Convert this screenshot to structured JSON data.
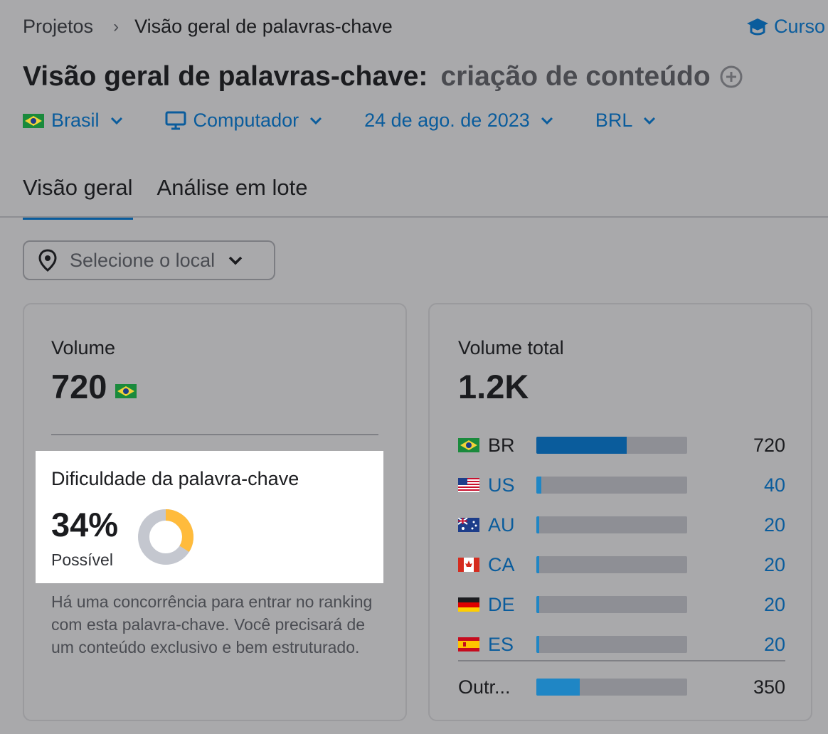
{
  "breadcrumb": {
    "parent": "Projetos",
    "current": "Visão geral de palavras-chave"
  },
  "courses_link": "Curso",
  "title": {
    "prefix": "Visão geral de palavras-chave:",
    "keyword": "criação de conteúdo"
  },
  "filters": {
    "country": "Brasil",
    "device": "Computador",
    "date": "24 de ago. de 2023",
    "currency": "BRL"
  },
  "tabs": [
    "Visão geral",
    "Análise em lote"
  ],
  "location_placeholder": "Selecione o local",
  "volume": {
    "label": "Volume",
    "value": "720"
  },
  "keyword_difficulty": {
    "label": "Dificuldade da palavra-chave",
    "percent_text": "34%",
    "percent": 34,
    "level": "Possível",
    "description": "Há uma concorrência para entrar no ranking com esta palavra-chave. Você precisará de um conteúdo exclusivo e bem estruturado."
  },
  "total_volume": {
    "label": "Volume total",
    "value": "1.2K",
    "countries": [
      {
        "code": "BR",
        "value": "720",
        "fraction": 0.6
      },
      {
        "code": "US",
        "value": "40",
        "fraction": 0.033
      },
      {
        "code": "AU",
        "value": "20",
        "fraction": 0.017
      },
      {
        "code": "CA",
        "value": "20",
        "fraction": 0.017
      },
      {
        "code": "DE",
        "value": "20",
        "fraction": 0.017
      },
      {
        "code": "ES",
        "value": "20",
        "fraction": 0.017
      }
    ],
    "other": {
      "label": "Outr...",
      "value": "350",
      "fraction": 0.29
    }
  },
  "colors": {
    "accent": "#0a5c9c",
    "accent_light": "#1f86c5",
    "donut_fill": "#ffbb3c",
    "donut_track": "#c4c7cf"
  }
}
